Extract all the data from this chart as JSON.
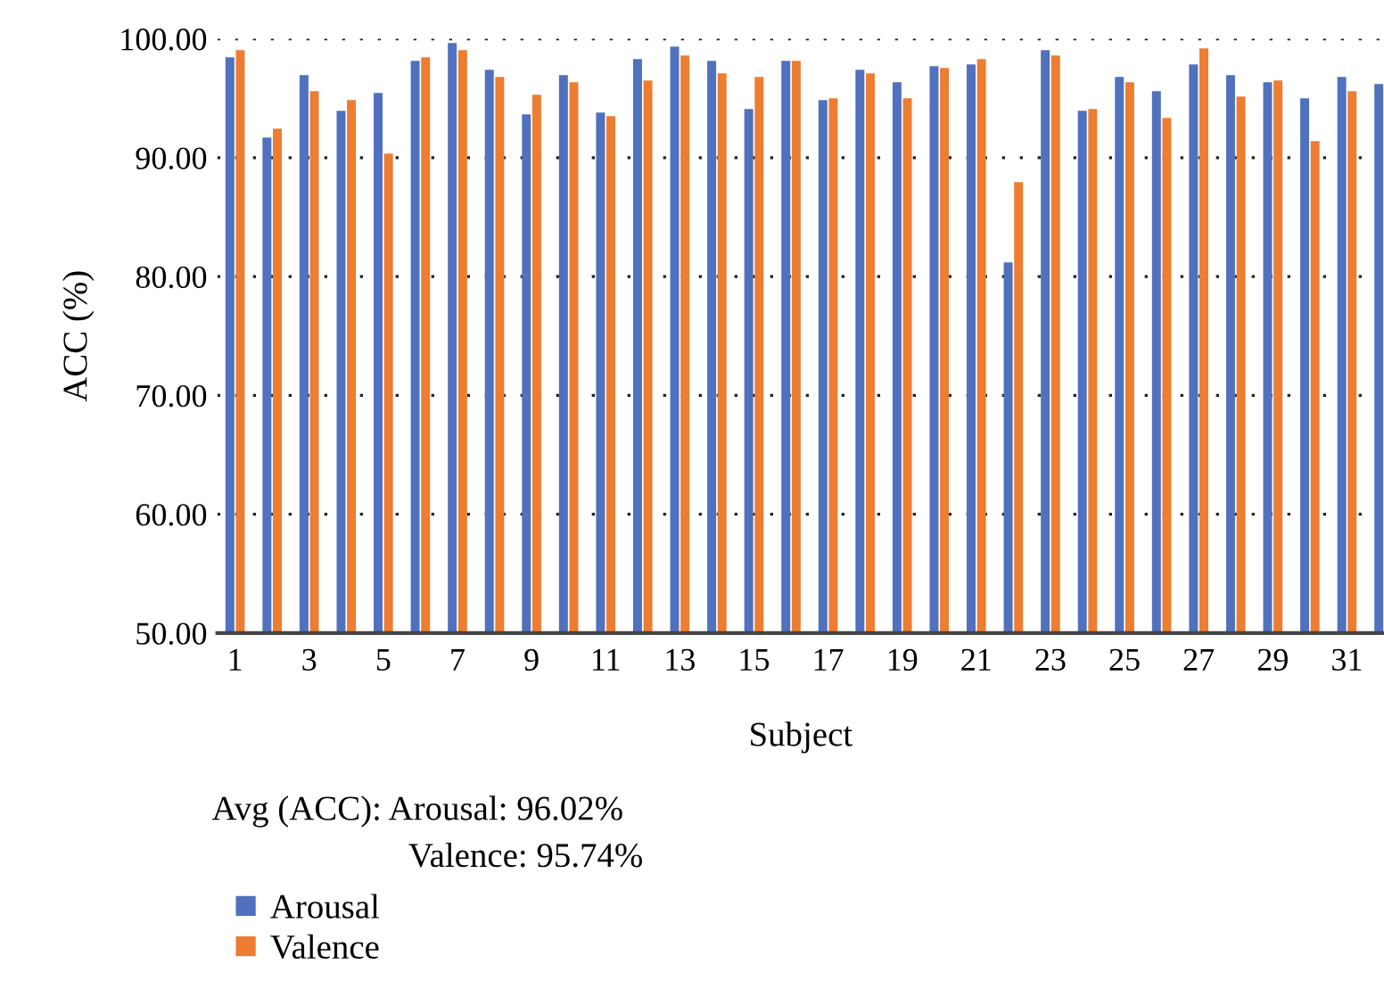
{
  "chart_data": {
    "type": "bar",
    "xlabel": "Subject",
    "ylabel": "ACC (%)",
    "categories": [
      "1",
      null,
      "3",
      null,
      "5",
      null,
      "7",
      null,
      "9",
      null,
      "11",
      null,
      "13",
      null,
      "15",
      null,
      "17",
      null,
      "19",
      null,
      "21",
      null,
      "23",
      null,
      "25",
      null,
      "27",
      null,
      "29",
      null,
      "31",
      null
    ],
    "series": [
      {
        "name": "Arousal",
        "color": "#4f71be",
        "values": [
          98.45,
          91.7,
          96.95,
          93.95,
          95.45,
          98.15,
          99.65,
          97.4,
          93.65,
          96.95,
          93.8,
          98.3,
          99.35,
          98.15,
          94.1,
          98.15,
          94.85,
          97.4,
          96.35,
          97.7,
          97.85,
          81.2,
          99.05,
          93.95,
          96.8,
          95.6,
          97.85,
          96.95,
          96.35,
          95.0,
          96.8,
          96.2
        ]
      },
      {
        "name": "Valence",
        "color": "#ed7d31",
        "values": [
          99.05,
          92.45,
          95.6,
          94.85,
          90.35,
          98.45,
          99.05,
          96.8,
          95.3,
          96.35,
          93.5,
          96.5,
          98.6,
          97.1,
          96.8,
          98.15,
          95.0,
          97.1,
          95.0,
          97.55,
          98.3,
          87.95,
          98.6,
          94.1,
          96.35,
          93.35,
          99.2,
          95.15,
          96.5,
          91.4,
          95.6,
          null
        ]
      }
    ],
    "ylim": [
      50,
      100
    ],
    "yticks": [
      {
        "value": 50,
        "label": "50.00"
      },
      {
        "value": 60,
        "label": "60.00"
      },
      {
        "value": 70,
        "label": "70.00"
      },
      {
        "value": 80,
        "label": "80.00"
      },
      {
        "value": 90,
        "label": "90.00"
      },
      {
        "value": 100,
        "label": "100.00"
      }
    ],
    "grid": "y",
    "legend": "bottom left",
    "annotations": [
      "Avg (ACC): Arousal: 96.02%",
      "Valence: 95.74%"
    ]
  }
}
